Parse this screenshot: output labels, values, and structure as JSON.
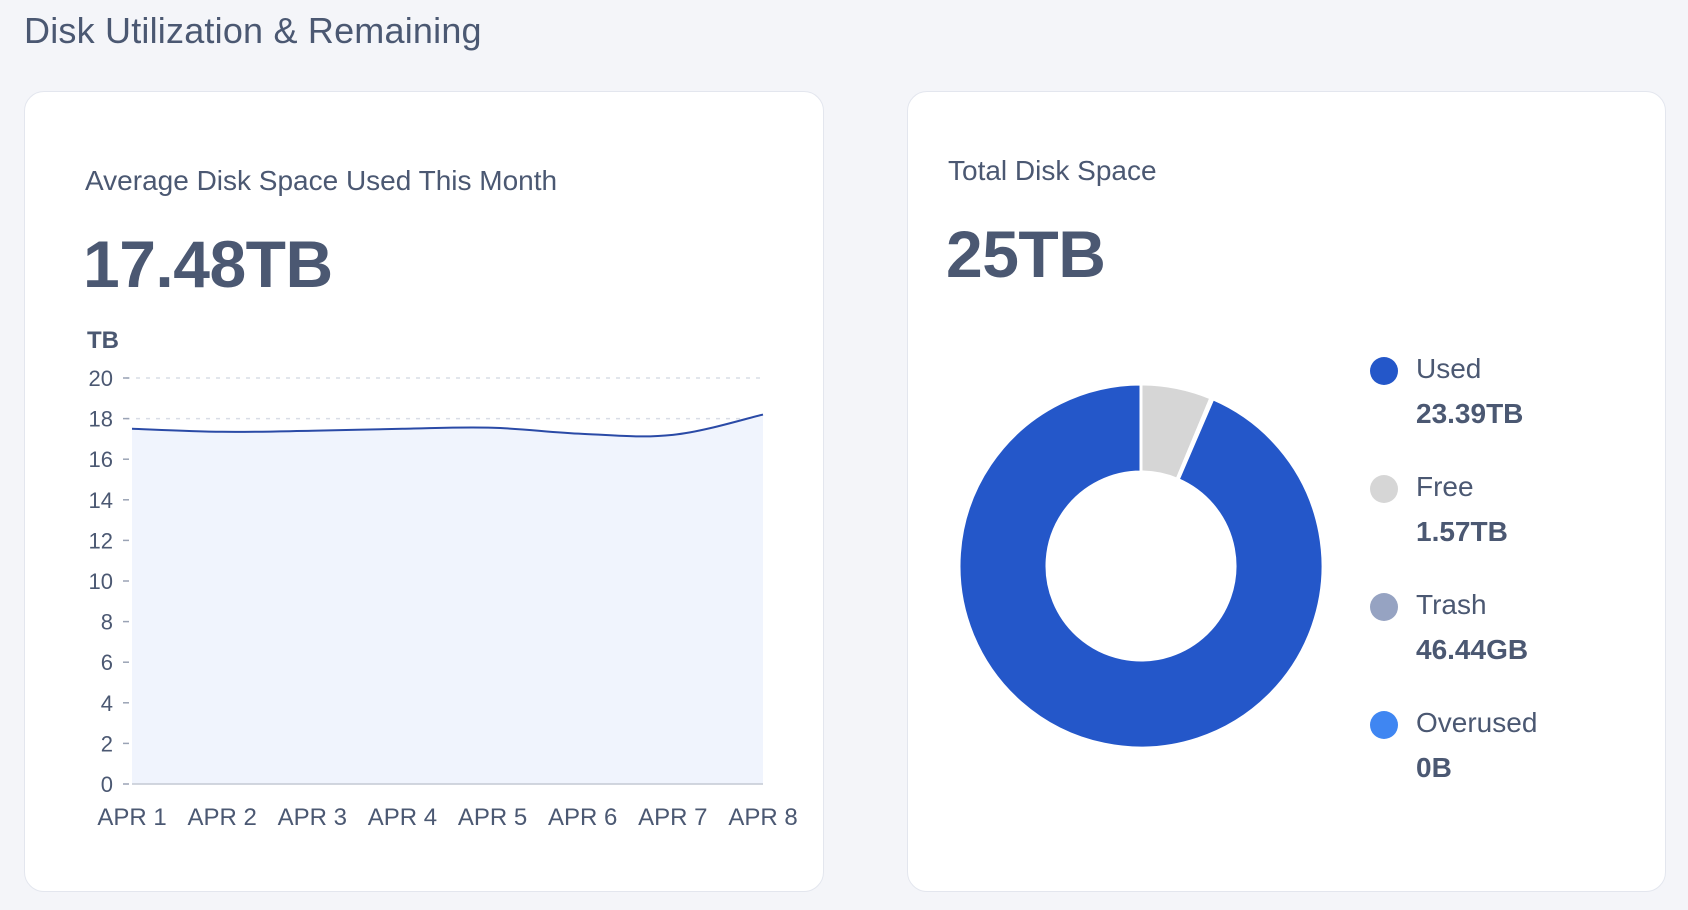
{
  "page": {
    "title": "Disk Utilization & Remaining"
  },
  "avg_card": {
    "label": "Average Disk Space Used This Month",
    "value": "17.48TB"
  },
  "total_card": {
    "label": "Total Disk Space",
    "value": "25TB"
  },
  "colors": {
    "line": "#2a4aa6",
    "area": "#f0f4fd",
    "axis_text": "#4b5872",
    "grid": "#d9dde6",
    "used": "#2457c9",
    "free": "#d6d6d6",
    "trash": "#96a3c2",
    "overused": "#3f86f2"
  },
  "chart_data": [
    {
      "type": "area",
      "ylabel": "TB",
      "categories": [
        "APR 1",
        "APR 2",
        "APR 3",
        "APR 4",
        "APR 5",
        "APR 6",
        "APR 7",
        "APR 8"
      ],
      "values": [
        17.5,
        17.35,
        17.4,
        17.5,
        17.55,
        17.25,
        17.2,
        18.2
      ],
      "ylim": [
        0,
        20
      ],
      "yticks": [
        "0",
        "2",
        "4",
        "6",
        "8",
        "10",
        "12",
        "14",
        "16",
        "18",
        "20"
      ],
      "grid": "dashed-top"
    },
    {
      "type": "pie",
      "subtype": "donut",
      "legend_position": "right",
      "labels": [
        "Used",
        "Free",
        "Trash",
        "Overused"
      ],
      "display_values": [
        "23.39TB",
        "1.57TB",
        "46.44GB",
        "0B"
      ],
      "values": [
        23.39,
        1.57,
        0.04644,
        0
      ],
      "units": "TB"
    }
  ]
}
